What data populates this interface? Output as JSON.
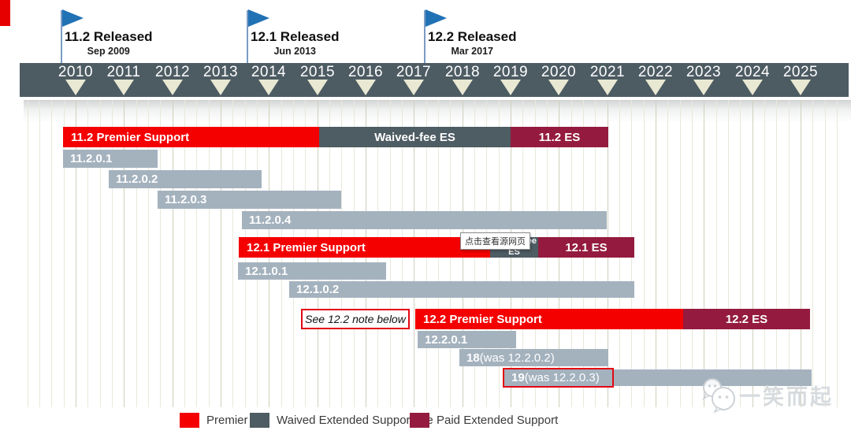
{
  "tooltip": {
    "text": "点击查看源网页"
  },
  "watermark": {
    "text": "一笑而起"
  },
  "colors": {
    "premier": "#f40000",
    "waived": "#4e5c63",
    "paid": "#941b3f",
    "version": "#a4b2be",
    "timeline-bar": "#4d5b63",
    "triangle": "#e9e9d3",
    "grid": "#e8e8da",
    "grid-year": "#cfcfbc",
    "note-red": "#e30613",
    "corner-red": "#e60000",
    "flag-blue": "#2171b5",
    "flag-pole": "#7b9cc4"
  },
  "chart_data": {
    "type": "gantt-timeline",
    "title": "",
    "axis": {
      "tick_years": [
        2010,
        2011,
        2012,
        2013,
        2014,
        2015,
        2016,
        2017,
        2018,
        2019,
        2020,
        2021,
        2022,
        2023,
        2024,
        2025
      ],
      "x_min": 2008.9,
      "x_max": 2026.0,
      "minor_grid": "quarterly",
      "grid": true
    },
    "milestones": [
      {
        "title": "11.2 Released",
        "date": "Sep 2009",
        "year": 2009.69
      },
      {
        "title": "12.1 Released",
        "date": "Jun 2013",
        "year": 2013.54
      },
      {
        "title": "12.2 Released",
        "date": "Mar 2017",
        "year": 2017.21
      }
    ],
    "bars": [
      {
        "row": 0,
        "type": "premier",
        "start": 2009.74,
        "end": 2015.04,
        "label": "11.2 Premier Support"
      },
      {
        "row": 0,
        "type": "waived",
        "start": 2015.04,
        "end": 2019.0,
        "label": "Waived-fee ES"
      },
      {
        "row": 0,
        "type": "paid",
        "start": 2019.0,
        "end": 2021.02,
        "label": "11.2 ES"
      },
      {
        "row": 1,
        "type": "version",
        "start": 2009.74,
        "end": 2011.7,
        "label": "11.2.0.1"
      },
      {
        "row": 2,
        "type": "version",
        "start": 2010.68,
        "end": 2013.85,
        "label": "11.2.0.2"
      },
      {
        "row": 3,
        "type": "version",
        "start": 2011.7,
        "end": 2015.49,
        "label": "11.2.0.3"
      },
      {
        "row": 4,
        "type": "version",
        "start": 2013.44,
        "end": 2020.99,
        "label": "11.2.0.4"
      },
      {
        "row": 5,
        "type": "premier",
        "start": 2013.38,
        "end": 2018.58,
        "label": "12.1 Premier Support"
      },
      {
        "row": 5,
        "type": "waived",
        "start": 2018.58,
        "end": 2019.57,
        "label": "Waived fee ES",
        "wrap": true
      },
      {
        "row": 5,
        "type": "paid",
        "start": 2019.57,
        "end": 2021.56,
        "label": "12.1 ES"
      },
      {
        "row": 6,
        "type": "version",
        "start": 2013.36,
        "end": 2016.42,
        "label": "12.1.0.1"
      },
      {
        "row": 7,
        "type": "version",
        "start": 2014.42,
        "end": 2021.56,
        "label": "12.1.0.2"
      },
      {
        "row": 8,
        "type": "note",
        "start": 2014.66,
        "end": 2016.91,
        "label": "See 12.2 note below"
      },
      {
        "row": 8,
        "type": "premier",
        "start": 2017.03,
        "end": 2022.57,
        "label": "12.2 Premier Support"
      },
      {
        "row": 8,
        "type": "paid",
        "start": 2022.57,
        "end": 2025.2,
        "label": "12.2 ES"
      },
      {
        "row": 9,
        "type": "version",
        "start": 2017.08,
        "end": 2019.11,
        "label": "12.2.0.1"
      },
      {
        "row": 10,
        "type": "version",
        "start": 2017.94,
        "end": 2021.02,
        "bold_part": "18",
        "normal_part": " (was 12.2.0.2)"
      },
      {
        "row": 11,
        "type": "version",
        "start": 2018.87,
        "end": 2025.23,
        "bold_part": "19",
        "normal_part": " (was 12.2.0.3)",
        "highlight_end": 2021.1
      }
    ],
    "legend": [
      {
        "label": "Premier",
        "type": "premier"
      },
      {
        "label": "Waived Extended Support fee",
        "type": "waived"
      },
      {
        "label": "Paid Extended Support",
        "type": "paid"
      }
    ],
    "legend_position": "bottom"
  }
}
